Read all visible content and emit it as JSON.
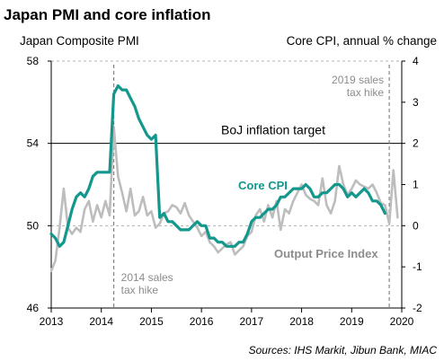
{
  "chart_data": {
    "type": "line",
    "title": "Japan PMI and core inflation",
    "left_axis_label": "Japan Composite PMI",
    "right_axis_label": "Core CPI,  annual % change",
    "left_ylim": [
      46,
      58
    ],
    "right_ylim": [
      -2,
      4
    ],
    "left_ticks": [
      "46",
      "50",
      "54",
      "58"
    ],
    "right_ticks": [
      "-2",
      "-1",
      "0",
      "1",
      "2",
      "3",
      "4"
    ],
    "x_ticks": [
      "2013",
      "2014",
      "2015",
      "2016",
      "2017",
      "2018",
      "2019",
      "2020"
    ],
    "xlim": [
      2013.0,
      2020.0
    ],
    "reference_line": {
      "label": "BoJ inflation target",
      "value": 2,
      "axis": "right"
    },
    "events": [
      {
        "label_lines": [
          "2014 sales",
          "tax hike"
        ],
        "x": 2014.25
      },
      {
        "label_lines": [
          "2019 sales",
          "tax hike"
        ],
        "x": 2019.75
      }
    ],
    "series": [
      {
        "name": "Core CPI",
        "axis": "right",
        "color": "#14978c",
        "x": [
          2013.0,
          2013.083,
          2013.167,
          2013.25,
          2013.333,
          2013.417,
          2013.5,
          2013.583,
          2013.667,
          2013.75,
          2013.833,
          2013.917,
          2014.0,
          2014.083,
          2014.167,
          2014.25,
          2014.333,
          2014.417,
          2014.5,
          2014.583,
          2014.667,
          2014.75,
          2014.833,
          2014.917,
          2015.0,
          2015.083,
          2015.167,
          2015.25,
          2015.333,
          2015.417,
          2015.5,
          2015.583,
          2015.667,
          2015.75,
          2015.833,
          2015.917,
          2016.0,
          2016.083,
          2016.167,
          2016.25,
          2016.333,
          2016.417,
          2016.5,
          2016.583,
          2016.667,
          2016.75,
          2016.833,
          2016.917,
          2017.0,
          2017.083,
          2017.167,
          2017.25,
          2017.333,
          2017.417,
          2017.5,
          2017.583,
          2017.667,
          2017.75,
          2017.833,
          2017.917,
          2018.0,
          2018.083,
          2018.167,
          2018.25,
          2018.333,
          2018.417,
          2018.5,
          2018.583,
          2018.667,
          2018.75,
          2018.833,
          2018.917,
          2019.0,
          2019.083,
          2019.167,
          2019.25,
          2019.333,
          2019.417,
          2019.5,
          2019.583,
          2019.667
        ],
        "values": [
          -0.2,
          -0.3,
          -0.5,
          -0.4,
          0.0,
          0.4,
          0.7,
          0.8,
          0.7,
          0.9,
          1.2,
          1.3,
          1.3,
          1.3,
          1.3,
          3.2,
          3.4,
          3.3,
          3.3,
          3.1,
          2.9,
          2.6,
          2.4,
          2.2,
          2.1,
          2.2,
          0.2,
          0.3,
          0.1,
          0.1,
          0.0,
          -0.1,
          -0.1,
          -0.1,
          0.0,
          0.1,
          0.0,
          0.0,
          -0.3,
          -0.3,
          -0.4,
          -0.4,
          -0.5,
          -0.5,
          -0.5,
          -0.4,
          -0.4,
          -0.2,
          0.1,
          0.2,
          0.2,
          0.3,
          0.4,
          0.4,
          0.5,
          0.7,
          0.7,
          0.8,
          0.9,
          0.9,
          0.9,
          1.0,
          0.9,
          0.7,
          0.7,
          0.8,
          0.8,
          0.9,
          1.0,
          1.0,
          0.9,
          0.7,
          0.8,
          0.7,
          0.8,
          0.9,
          0.8,
          0.6,
          0.6,
          0.5,
          0.3
        ]
      },
      {
        "name": "Output Price Index",
        "axis": "left",
        "color": "#bdbdbd",
        "x": [
          2013.0,
          2013.083,
          2013.167,
          2013.25,
          2013.333,
          2013.417,
          2013.5,
          2013.583,
          2013.667,
          2013.75,
          2013.833,
          2013.917,
          2014.0,
          2014.083,
          2014.167,
          2014.25,
          2014.333,
          2014.417,
          2014.5,
          2014.583,
          2014.667,
          2014.75,
          2014.833,
          2014.917,
          2015.0,
          2015.083,
          2015.167,
          2015.25,
          2015.333,
          2015.417,
          2015.5,
          2015.583,
          2015.667,
          2015.75,
          2015.833,
          2015.917,
          2016.0,
          2016.083,
          2016.167,
          2016.25,
          2016.333,
          2016.417,
          2016.5,
          2016.583,
          2016.667,
          2016.75,
          2016.833,
          2016.917,
          2017.0,
          2017.083,
          2017.167,
          2017.25,
          2017.333,
          2017.417,
          2017.5,
          2017.583,
          2017.667,
          2017.75,
          2017.833,
          2017.917,
          2018.0,
          2018.083,
          2018.167,
          2018.25,
          2018.333,
          2018.417,
          2018.5,
          2018.583,
          2018.667,
          2018.75,
          2018.833,
          2018.917,
          2019.0,
          2019.083,
          2019.167,
          2019.25,
          2019.333,
          2019.417,
          2019.5,
          2019.583,
          2019.667,
          2019.75,
          2019.833,
          2019.917
        ],
        "values": [
          47.8,
          48.3,
          49.9,
          51.8,
          49.9,
          49.6,
          49.9,
          49.7,
          50.8,
          51.2,
          50.2,
          51.0,
          50.4,
          51.2,
          50.5,
          54.8,
          52.4,
          51.6,
          50.7,
          51.8,
          50.5,
          50.7,
          51.4,
          50.5,
          50.7,
          49.9,
          50.1,
          50.6,
          50.7,
          51.0,
          50.9,
          50.6,
          51.1,
          50.5,
          50.2,
          49.9,
          49.5,
          49.7,
          49.2,
          49.0,
          48.7,
          48.9,
          49.1,
          49.2,
          48.6,
          48.8,
          49.0,
          49.5,
          49.7,
          50.5,
          50.8,
          50.2,
          51.0,
          50.4,
          51.2,
          49.8,
          50.8,
          50.6,
          51.2,
          51.6,
          52.0,
          51.5,
          51.3,
          51.2,
          51.0,
          52.3,
          51.0,
          50.6,
          51.2,
          52.9,
          52.0,
          51.5,
          51.8,
          52.2,
          52.0,
          51.9,
          51.8,
          52.0,
          51.6,
          51.1,
          51.0,
          50.1,
          52.7,
          50.4
        ]
      }
    ]
  },
  "source": "Sources: IHS Markit, Jibun Bank, MIAC"
}
